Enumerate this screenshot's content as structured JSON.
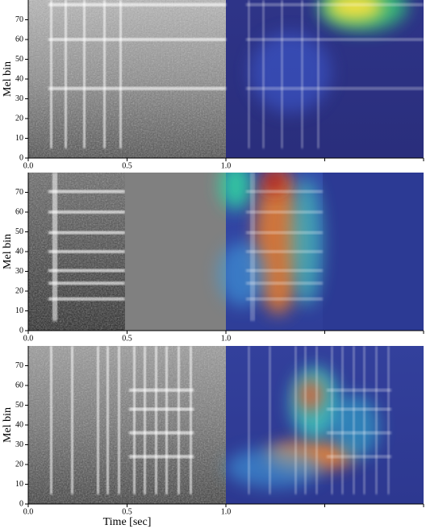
{
  "chart_data": [
    {
      "type": "heatmap",
      "ylabel": "Mel bin",
      "xlim": [
        0,
        1
      ],
      "ylim": [
        0,
        80
      ],
      "xticks": [
        {
          "value": 0,
          "label": "0.0"
        },
        {
          "value": 0.5,
          "label": "0.5"
        },
        {
          "value": 1,
          "label": "1.0"
        }
      ],
      "yticks": [
        0,
        10,
        20,
        30,
        40,
        50,
        60,
        70
      ]
    },
    {
      "type": "heatmap",
      "ylabel": "Mel bin",
      "xlim": [
        0,
        1
      ],
      "ylim": [
        0,
        80
      ],
      "xticks": [
        {
          "value": 0,
          "label": "0.0"
        },
        {
          "value": 0.5,
          "label": "0.5"
        },
        {
          "value": 1,
          "label": "1.0"
        }
      ],
      "yticks": [
        0,
        10,
        20,
        30,
        40,
        50,
        60,
        70
      ]
    },
    {
      "type": "heatmap",
      "ylabel": "Mel bin",
      "xlabel": "Time [sec]",
      "xlim": [
        0,
        1
      ],
      "ylim": [
        0,
        80
      ],
      "xticks": [
        {
          "value": 0,
          "label": "0.0"
        },
        {
          "value": 0.5,
          "label": "0.5"
        },
        {
          "value": 1,
          "label": "1.0"
        }
      ],
      "yticks": [
        0,
        10,
        20,
        30,
        40,
        50,
        60,
        70
      ]
    }
  ]
}
